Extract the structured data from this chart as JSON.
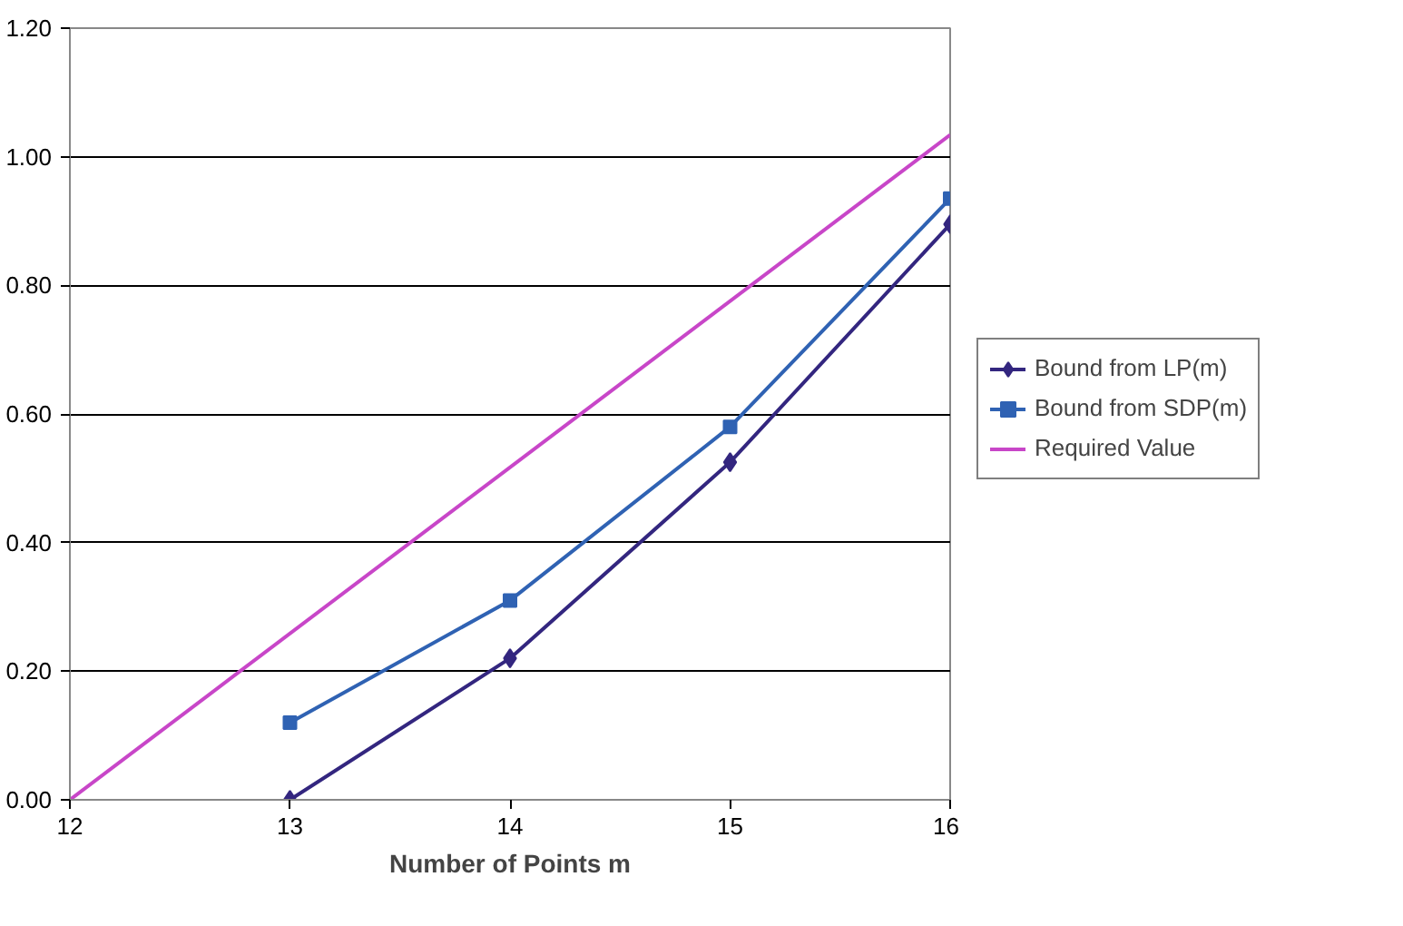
{
  "chart_data": {
    "type": "line",
    "xlabel": "Number of Points m",
    "xlim": [
      12,
      16
    ],
    "xticks": [
      12,
      13,
      14,
      15,
      16
    ],
    "ylim": [
      0,
      1.2
    ],
    "yticks": [
      {
        "value": 0,
        "label": "0.00"
      },
      {
        "value": 0.2,
        "label": "0.20"
      },
      {
        "value": 0.4,
        "label": "0.40"
      },
      {
        "value": 0.6,
        "label": "0.60"
      },
      {
        "value": 0.8,
        "label": "0.80"
      },
      {
        "value": 1.0,
        "label": "1.00"
      },
      {
        "value": 1.2,
        "label": "1.20"
      }
    ],
    "grid": "y",
    "legend": "right",
    "series": [
      {
        "name": "Bound from LP(m)",
        "color": "#33267f",
        "x": [
          13,
          14,
          15,
          16
        ],
        "values": [
          0.0,
          0.22,
          0.525,
          0.895
        ],
        "marker": "diamond"
      },
      {
        "name": "Bound from SDP(m)",
        "color": "#2f62b3",
        "x": [
          13,
          14,
          15,
          16
        ],
        "values": [
          0.12,
          0.31,
          0.58,
          0.935
        ],
        "marker": "square"
      },
      {
        "name": "Required Value",
        "color": "#c846c8",
        "x": [
          12,
          16
        ],
        "values": [
          0.0,
          1.034
        ],
        "marker": "none"
      }
    ]
  }
}
